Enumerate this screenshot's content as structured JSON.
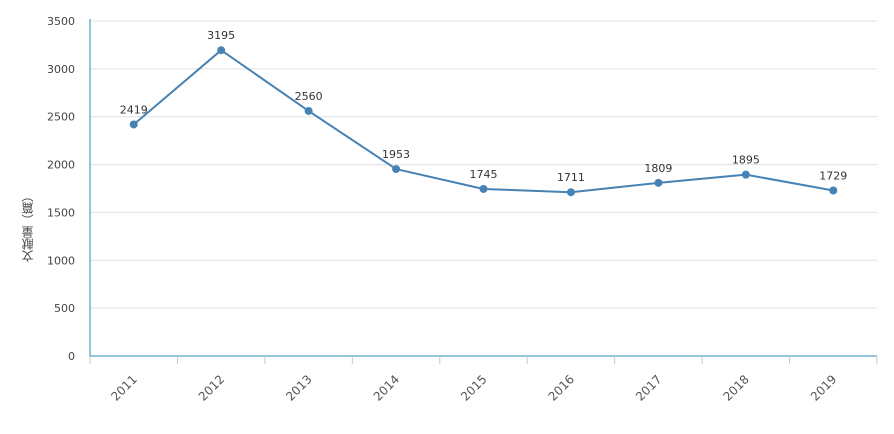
{
  "chart_data": {
    "type": "line",
    "categories": [
      "2011",
      "2012",
      "2013",
      "2014",
      "2015",
      "2016",
      "2017",
      "2018",
      "2019"
    ],
    "series": [
      {
        "values": [
          2419,
          3195,
          2560,
          1953,
          1745,
          1711,
          1809,
          1895,
          1729
        ]
      }
    ],
    "xlabel": "",
    "ylabel": "文献量（篇）",
    "ylim": [
      0,
      3500
    ],
    "yticks": [
      0,
      500,
      1000,
      1500,
      2000,
      2500,
      3000,
      3500
    ],
    "grid": true,
    "data_labels": true,
    "legend": "none",
    "colors": {
      "line": "#4682b4",
      "axis": "#2a8fbd",
      "grid": "#e0e0e0"
    }
  }
}
